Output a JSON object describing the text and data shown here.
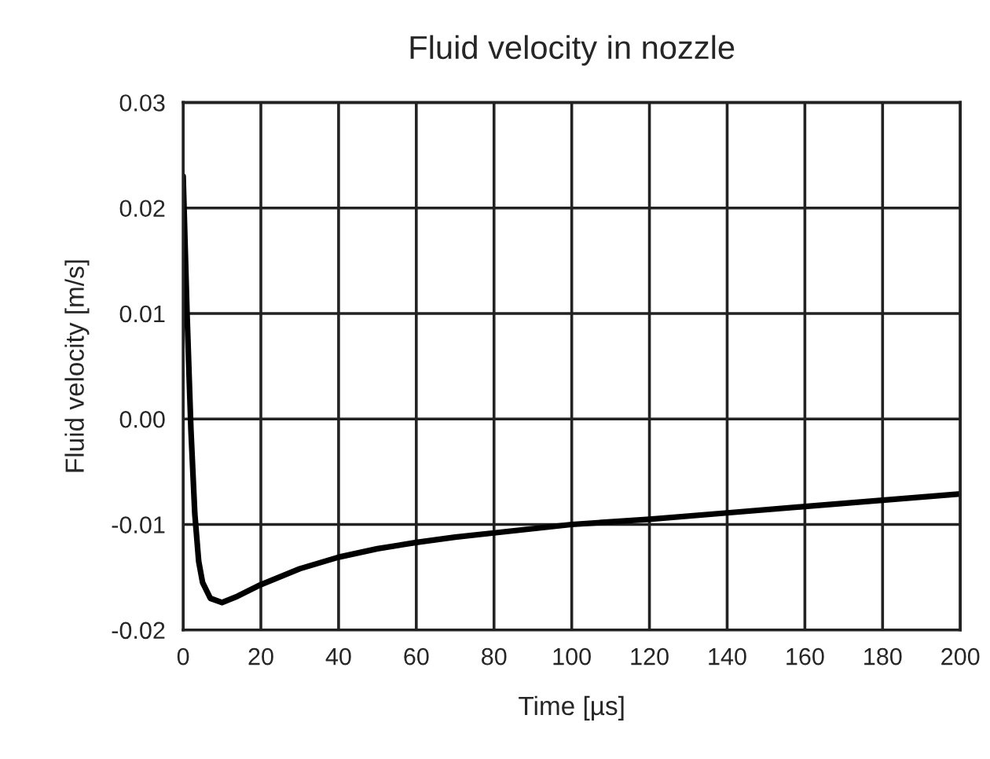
{
  "chart_data": {
    "type": "line",
    "title": "Fluid velocity in nozzle",
    "xlabel": "Time [µs]",
    "ylabel": "Fluid velocity [m/s]",
    "x": [
      0,
      1,
      2,
      3,
      4,
      5,
      7,
      10,
      14,
      20,
      30,
      40,
      50,
      60,
      70,
      80,
      100,
      120,
      140,
      160,
      180,
      200
    ],
    "series": [
      {
        "color": "#000000",
        "values": [
          0.023,
          0.01,
          -0.001,
          -0.009,
          -0.0135,
          -0.0155,
          -0.017,
          -0.0174,
          -0.0168,
          -0.0157,
          -0.0142,
          -0.0131,
          -0.0123,
          -0.0117,
          -0.0112,
          -0.0108,
          -0.01,
          -0.0095,
          -0.0089,
          -0.0083,
          -0.0077,
          -0.0071
        ]
      }
    ],
    "xlim": [
      0,
      200
    ],
    "xticks": [
      0,
      20,
      40,
      60,
      80,
      100,
      120,
      140,
      160,
      180,
      200
    ],
    "ylim": [
      -0.02,
      0.03
    ],
    "yticks": [
      {
        "value": -0.02,
        "label": "-0.02"
      },
      {
        "value": -0.01,
        "label": "-0.01"
      },
      {
        "value": 0,
        "label": "0.00"
      },
      {
        "value": 0.01,
        "label": "0.01"
      },
      {
        "value": 0.02,
        "label": "0.02"
      },
      {
        "value": 0.03,
        "label": "0.03"
      }
    ],
    "grid": true,
    "marker": "none",
    "line_style": "solid"
  }
}
